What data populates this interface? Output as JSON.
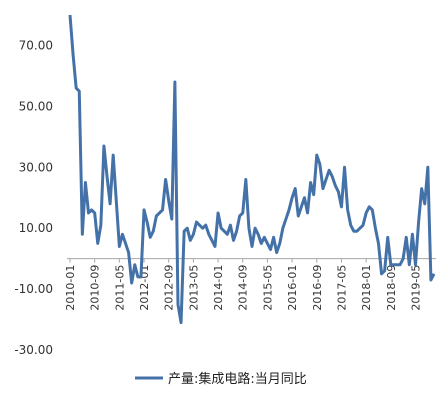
{
  "chart_data": {
    "type": "line",
    "title": "",
    "xlabel": "",
    "ylabel": "",
    "ylim": [
      -30,
      80
    ],
    "yticks": [
      "70.00",
      "50.00",
      "30.00",
      "10.00",
      "-10.00",
      "-30.00"
    ],
    "ytick_values": [
      70,
      50,
      30,
      10,
      -10,
      -30
    ],
    "xtick_labels": [
      "2010-01",
      "2010-09",
      "2011-05",
      "2012-01",
      "2012-09",
      "2013-05",
      "2014-01",
      "2014-09",
      "2015-05",
      "2016-01",
      "2016-09",
      "2017-05",
      "2018-01",
      "2018-09",
      "2019-05"
    ],
    "x_start": "2010-01",
    "grid": false,
    "legend_position": "bottom",
    "series": [
      {
        "name": "产量:集成电路:当月同比",
        "color": "#4472a8",
        "x": [
          "2010-01",
          "2010-02",
          "2010-03",
          "2010-04",
          "2010-05",
          "2010-06",
          "2010-07",
          "2010-08",
          "2010-09",
          "2010-10",
          "2010-11",
          "2010-12",
          "2011-01",
          "2011-02",
          "2011-03",
          "2011-04",
          "2011-05",
          "2011-06",
          "2011-07",
          "2011-08",
          "2011-09",
          "2011-10",
          "2011-11",
          "2011-12",
          "2012-01",
          "2012-02",
          "2012-03",
          "2012-04",
          "2012-05",
          "2012-06",
          "2012-07",
          "2012-08",
          "2012-09",
          "2012-10",
          "2012-11",
          "2012-12",
          "2013-01",
          "2013-02",
          "2013-03",
          "2013-04",
          "2013-05",
          "2013-06",
          "2013-07",
          "2013-08",
          "2013-09",
          "2013-10",
          "2013-11",
          "2013-12",
          "2014-01",
          "2014-02",
          "2014-03",
          "2014-04",
          "2014-05",
          "2014-06",
          "2014-07",
          "2014-08",
          "2014-09",
          "2014-10",
          "2014-11",
          "2014-12",
          "2015-01",
          "2015-02",
          "2015-03",
          "2015-04",
          "2015-05",
          "2015-06",
          "2015-07",
          "2015-08",
          "2015-09",
          "2015-10",
          "2015-11",
          "2015-12",
          "2016-01",
          "2016-02",
          "2016-03",
          "2016-04",
          "2016-05",
          "2016-06",
          "2016-07",
          "2016-08",
          "2016-09",
          "2016-10",
          "2016-11",
          "2016-12",
          "2017-01",
          "2017-02",
          "2017-03",
          "2017-04",
          "2017-05",
          "2017-06",
          "2017-07",
          "2017-08",
          "2017-09",
          "2017-10",
          "2017-11",
          "2017-12",
          "2018-01",
          "2018-02",
          "2018-03",
          "2018-04",
          "2018-05",
          "2018-06",
          "2018-07",
          "2018-08",
          "2018-09",
          "2018-10",
          "2018-11",
          "2018-12",
          "2019-01",
          "2019-02",
          "2019-03",
          "2019-04",
          "2019-05",
          "2019-06",
          "2019-07",
          "2019-08",
          "2019-09",
          "2019-10",
          "2019-11"
        ],
        "values": [
          80.0,
          67.0,
          56.0,
          55.0,
          8.0,
          25.0,
          15.0,
          16.0,
          15.0,
          5.0,
          11.0,
          37.0,
          27.0,
          18.0,
          34.0,
          19.0,
          4.0,
          8.0,
          5.0,
          2.0,
          -8.0,
          -2.0,
          -6.0,
          -6.0,
          16.0,
          12.0,
          7.0,
          9.0,
          14.0,
          15.0,
          16.0,
          26.0,
          19.0,
          13.0,
          58.0,
          -15.0,
          -21.0,
          9.0,
          10.0,
          6.0,
          8.0,
          12.0,
          11.0,
          10.0,
          11.0,
          8.0,
          6.0,
          4.0,
          15.0,
          10.0,
          9.0,
          8.0,
          11.0,
          6.0,
          9.0,
          14.0,
          15.0,
          26.0,
          10.0,
          4.0,
          10.0,
          8.0,
          5.0,
          7.0,
          5.0,
          3.0,
          7.0,
          2.0,
          5.0,
          10.0,
          13.0,
          16.0,
          20.0,
          23.0,
          14.0,
          17.0,
          20.0,
          15.0,
          25.0,
          21.0,
          34.0,
          31.0,
          23.0,
          26.0,
          29.0,
          27.0,
          24.0,
          22.0,
          17.0,
          30.0,
          16.0,
          11.0,
          9.0,
          9.0,
          10.0,
          11.0,
          15.0,
          17.0,
          16.0,
          10.0,
          5.0,
          -5.0,
          -4.0,
          7.0,
          -2.0,
          -2.0,
          -2.0,
          -2.0,
          0.0,
          7.0,
          -2.0,
          8.0,
          -2.0,
          12.0,
          23.0,
          18.0,
          30.0,
          -7.0,
          -5.0
        ]
      }
    ]
  }
}
